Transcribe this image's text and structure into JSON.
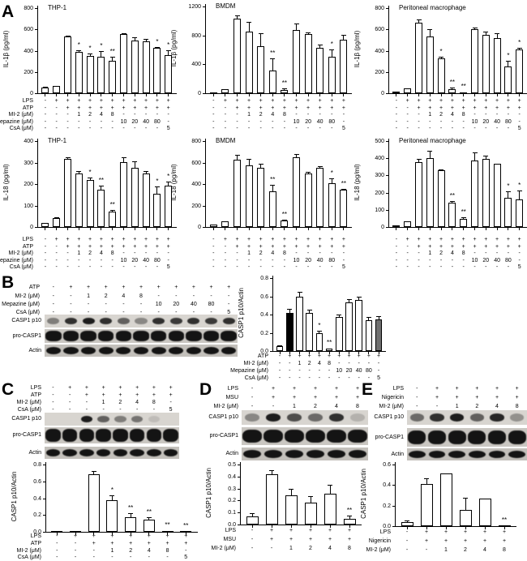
{
  "panel_letters": {
    "A": "A",
    "B": "B",
    "C": "C",
    "D": "D",
    "E": "E"
  },
  "colors": {
    "axis": "#000000",
    "bar_fill": "#ffffff",
    "bar_black": "#000000",
    "bar_gray": "#6f6f6f",
    "band": "#141414",
    "strip_bgs": [
      "#d8d5d0",
      "#cac7c2",
      "#c3c0bb"
    ]
  },
  "matrices": {
    "A": {
      "rows": [
        {
          "label": "LPS",
          "cells": [
            "-",
            "+",
            "+",
            "+",
            "+",
            "+",
            "+",
            "+",
            "+",
            "+",
            "+",
            "+"
          ]
        },
        {
          "label": "ATP",
          "cells": [
            "-",
            "-",
            "+",
            "+",
            "+",
            "+",
            "+",
            "+",
            "+",
            "+",
            "+",
            "+"
          ]
        },
        {
          "label": "MI-2 (μM)",
          "cells": [
            "-",
            "-",
            "-",
            "1",
            "2",
            "4",
            "8",
            "-",
            "-",
            "-",
            "-",
            "-"
          ]
        },
        {
          "label": "Mepazine (μM)",
          "cells": [
            "-",
            "-",
            "-",
            "-",
            "-",
            "-",
            "-",
            "10",
            "20",
            "40",
            "80",
            "-"
          ]
        },
        {
          "label": "CsA (μM)",
          "cells": [
            "-",
            "-",
            "-",
            "-",
            "-",
            "-",
            "-",
            "-",
            "-",
            "-",
            "-",
            "5"
          ]
        }
      ]
    },
    "B": {
      "rows": [
        {
          "label": "ATP",
          "cells": [
            "-",
            "+",
            "+",
            "+",
            "+",
            "+",
            "+",
            "+",
            "+",
            "+",
            "+"
          ]
        },
        {
          "label": "MI-2 (μM)",
          "cells": [
            "-",
            "-",
            "1",
            "2",
            "4",
            "8",
            "-",
            "-",
            "-",
            "-",
            "-"
          ]
        },
        {
          "label": "Mepazine (μM)",
          "cells": [
            "-",
            "-",
            "-",
            "-",
            "-",
            "-",
            "10",
            "20",
            "40",
            "80",
            "-"
          ]
        },
        {
          "label": "CsA (μM)",
          "cells": [
            "-",
            "-",
            "-",
            "-",
            "-",
            "-",
            "-",
            "-",
            "-",
            "-",
            "5"
          ]
        }
      ]
    },
    "C": {
      "rows": [
        {
          "label": "LPS",
          "cells": [
            "-",
            "+",
            "+",
            "+",
            "+",
            "+",
            "+",
            "+"
          ]
        },
        {
          "label": "ATP",
          "cells": [
            "-",
            "-",
            "+",
            "+",
            "+",
            "+",
            "+",
            "+"
          ]
        },
        {
          "label": "MI-2 (μM)",
          "cells": [
            "-",
            "-",
            "-",
            "1",
            "2",
            "4",
            "8",
            "-"
          ]
        },
        {
          "label": "CsA (μM)",
          "cells": [
            "-",
            "-",
            "-",
            "-",
            "-",
            "-",
            "-",
            "5"
          ]
        }
      ]
    },
    "D": {
      "rows": [
        {
          "label": "LPS",
          "cells": [
            "-",
            "+",
            "+",
            "+",
            "+",
            "+"
          ]
        },
        {
          "label": "MSU",
          "cells": [
            "-",
            "+",
            "+",
            "+",
            "+",
            "+"
          ]
        },
        {
          "label": "MI-2 (μM)",
          "cells": [
            "-",
            "-",
            "1",
            "2",
            "4",
            "8"
          ]
        }
      ]
    },
    "E": {
      "rows": [
        {
          "label": "LPS",
          "cells": [
            "-",
            "+",
            "+",
            "+",
            "+",
            "+"
          ]
        },
        {
          "label": "Nigericin",
          "cells": [
            "-",
            "+",
            "+",
            "+",
            "+",
            "+"
          ]
        },
        {
          "label": "MI-2 (μM)",
          "cells": [
            "-",
            "-",
            "1",
            "2",
            "4",
            "8"
          ]
        }
      ]
    }
  },
  "chart_data": [
    {
      "id": "a1",
      "type": "bar",
      "title": "THP-1",
      "ylabel": "IL-1β (pg/ml)",
      "ymax": 800,
      "yticks": [
        "0",
        "200",
        "400",
        "600",
        "800"
      ],
      "values": [
        50,
        65,
        530,
        385,
        350,
        340,
        305,
        555,
        495,
        485,
        425,
        360
      ],
      "errors": [
        8,
        5,
        12,
        20,
        25,
        55,
        40,
        12,
        30,
        25,
        12,
        45
      ],
      "sig": [
        "",
        "",
        "",
        "*",
        "*",
        "*",
        "**",
        "",
        "",
        "",
        "*",
        "*"
      ],
      "matrix": "A",
      "matrix_labels": true
    },
    {
      "id": "a2",
      "type": "bar",
      "title": "BMDM",
      "ylabel": "IL-1β (pg/ml)",
      "ymax": 1200,
      "yticks": [
        "0",
        "400",
        "800",
        "1200"
      ],
      "values": [
        15,
        55,
        1030,
        855,
        650,
        310,
        45,
        880,
        815,
        625,
        510,
        735
      ],
      "errors": [
        5,
        8,
        45,
        130,
        175,
        170,
        20,
        80,
        30,
        45,
        95,
        70
      ],
      "sig": [
        "",
        "",
        "",
        "",
        "",
        "**",
        "**",
        "",
        "",
        "",
        "*",
        ""
      ],
      "matrix": "A",
      "matrix_labels": false
    },
    {
      "id": "a3",
      "type": "bar",
      "title": "Peritoneal macrophage",
      "ylabel": "IL-1β (pg/ml)",
      "ymax": 800,
      "yticks": [
        "0",
        "200",
        "400",
        "600",
        "800"
      ],
      "values": [
        15,
        45,
        665,
        530,
        330,
        35,
        10,
        605,
        550,
        520,
        250,
        415
      ],
      "errors": [
        4,
        5,
        28,
        75,
        10,
        15,
        4,
        10,
        30,
        45,
        55,
        10
      ],
      "sig": [
        "",
        "",
        "",
        "",
        "*",
        "**",
        "**",
        "",
        "",
        "",
        "*",
        "*"
      ],
      "matrix": "A",
      "matrix_labels": false
    },
    {
      "id": "a4",
      "type": "bar",
      "title": "THP-1",
      "ylabel": "IL-18 (pg/ml)",
      "ymax": 400,
      "yticks": [
        "0",
        "100",
        "200",
        "300",
        "400"
      ],
      "values": [
        20,
        40,
        318,
        250,
        218,
        172,
        70,
        303,
        275,
        250,
        155,
        192
      ],
      "errors": [
        3,
        4,
        8,
        10,
        12,
        22,
        10,
        22,
        30,
        10,
        32,
        20
      ],
      "sig": [
        "",
        "",
        "",
        "",
        "*",
        "**",
        "**",
        "",
        "",
        "",
        "*",
        "*"
      ],
      "matrix": "A",
      "matrix_labels": true
    },
    {
      "id": "a5",
      "type": "bar",
      "title": "BMDM",
      "ylabel": "IL-18 (pg/ml)",
      "ymax": 800,
      "yticks": [
        "0",
        "200",
        "400",
        "600",
        "800"
      ],
      "values": [
        25,
        50,
        625,
        575,
        550,
        335,
        60,
        648,
        495,
        553,
        405,
        345
      ],
      "errors": [
        4,
        6,
        45,
        60,
        35,
        55,
        10,
        28,
        18,
        12,
        45,
        8
      ],
      "sig": [
        "",
        "",
        "",
        "",
        "",
        "**",
        "**",
        "",
        "",
        "",
        "*",
        "**"
      ],
      "matrix": "A",
      "matrix_labels": false
    },
    {
      "id": "a6",
      "type": "bar",
      "title": "Peritoneal macrophage",
      "ylabel": "IL-18 (pg/ml)",
      "ymax": 500,
      "yticks": [
        "0",
        "100",
        "200",
        "300",
        "400",
        "500"
      ],
      "values": [
        8,
        35,
        378,
        400,
        328,
        140,
        48,
        388,
        398,
        368,
        172,
        160
      ],
      "errors": [
        2,
        3,
        20,
        45,
        6,
        10,
        8,
        45,
        18,
        3,
        35,
        50
      ],
      "sig": [
        "",
        "",
        "",
        "",
        "",
        "**",
        "**",
        "",
        "",
        "",
        "*",
        "*"
      ],
      "matrix": "A",
      "matrix_labels": false
    },
    {
      "id": "b",
      "type": "bar",
      "title": "",
      "ylabel": "CASP1 p10/Actin",
      "ymax": 0.8,
      "yticks": [
        "0.0",
        "0.2",
        "0.4",
        "0.6",
        "0.8"
      ],
      "values": [
        0.05,
        0.42,
        0.6,
        0.42,
        0.2,
        0.03,
        0.37,
        0.53,
        0.56,
        0.34,
        0.35
      ],
      "errors": [
        0.012,
        0.04,
        0.05,
        0.03,
        0.02,
        0.008,
        0.03,
        0.04,
        0.04,
        0.03,
        0.03
      ],
      "sig": [
        "",
        "",
        "",
        "",
        "*",
        "**",
        "",
        "",
        "",
        "",
        ""
      ],
      "fills": [
        "#ffffff",
        "#000000",
        "#ffffff",
        "#ffffff",
        "#ffffff",
        "#ffffff",
        "#ffffff",
        "#ffffff",
        "#ffffff",
        "#ffffff",
        "#6f6f6f"
      ],
      "matrix": "B",
      "matrix_labels": true
    },
    {
      "id": "c",
      "type": "bar",
      "title": "",
      "ylabel": "CASP1 p10/Actin",
      "ymax": 0.8,
      "yticks": [
        "0.0",
        "0.2",
        "0.4",
        "0.6",
        "0.8"
      ],
      "values": [
        0.004,
        0.004,
        0.68,
        0.38,
        0.17,
        0.14,
        0.012,
        0.004
      ],
      "errors": [
        0,
        0,
        0.04,
        0.05,
        0.05,
        0.035,
        0.004,
        0
      ],
      "sig": [
        "",
        "",
        "",
        "*",
        "**",
        "**",
        "**",
        "**"
      ],
      "matrix": "C",
      "matrix_labels": true
    },
    {
      "id": "d",
      "type": "bar",
      "title": "",
      "ylabel": "CASP1 p10/Actin",
      "ymax": 0.5,
      "yticks": [
        "0.0",
        "0.1",
        "0.2",
        "0.3",
        "0.4",
        "0.5"
      ],
      "values": [
        0.065,
        0.42,
        0.24,
        0.18,
        0.26,
        0.05
      ],
      "errors": [
        0.03,
        0.035,
        0.055,
        0.055,
        0.07,
        0.025
      ],
      "sig": [
        "",
        "",
        "",
        "",
        "",
        "**"
      ],
      "matrix": "D",
      "matrix_labels": true
    },
    {
      "id": "e",
      "type": "bar",
      "title": "",
      "ylabel": "CASP1 p10/Actin",
      "ymax": 0.6,
      "yticks": [
        "0.0",
        "0.2",
        "0.4",
        "0.6"
      ],
      "values": [
        0.04,
        0.41,
        0.51,
        0.16,
        0.27,
        0.004
      ],
      "errors": [
        0.015,
        0.055,
        0.006,
        0.115,
        0.006,
        0
      ],
      "sig": [
        "",
        "",
        "",
        "",
        "",
        "**"
      ],
      "matrix": "E",
      "matrix_labels": true
    }
  ],
  "blots": [
    {
      "id": "b",
      "matrix": "B",
      "bands": [
        {
          "label": "CASP1 p10",
          "intensities": [
            0.45,
            0.85,
            0.95,
            0.85,
            0.6,
            0.4,
            0.85,
            0.8,
            0.85,
            0.8,
            0.85
          ]
        },
        {
          "label": "pro-CASP1",
          "intensities": [
            1,
            1,
            1,
            1,
            1,
            1,
            1,
            1,
            1,
            1,
            1
          ]
        },
        {
          "label": "Actin",
          "intensities": [
            1,
            1,
            1,
            1,
            1,
            1,
            1,
            1,
            1,
            1,
            1
          ]
        }
      ]
    },
    {
      "id": "c",
      "matrix": "C",
      "bands": [
        {
          "label": "CASP1 p10",
          "intensities": [
            0,
            0,
            0.95,
            0.6,
            0.45,
            0.5,
            0.12,
            0
          ]
        },
        {
          "label": "pro-CASP1",
          "intensities": [
            1,
            1,
            1,
            1,
            1,
            1,
            1,
            1
          ]
        },
        {
          "label": "Actin",
          "intensities": [
            1,
            1,
            1,
            1,
            1,
            1,
            1,
            1
          ]
        }
      ]
    },
    {
      "id": "d",
      "matrix": "D",
      "bands": [
        {
          "label": "CASP1 p10",
          "intensities": [
            0.4,
            0.95,
            0.7,
            0.55,
            0.85,
            0.18
          ]
        },
        {
          "label": "pro-CASP1",
          "intensities": [
            1,
            1,
            1,
            1,
            1,
            1
          ]
        },
        {
          "label": "Actin",
          "intensities": [
            1,
            1,
            1,
            1,
            1,
            1
          ]
        }
      ]
    },
    {
      "id": "e",
      "matrix": "E",
      "bands": [
        {
          "label": "CASP1 p10",
          "intensities": [
            0.55,
            0.85,
            0.95,
            0.6,
            0.9,
            0.35
          ]
        },
        {
          "label": "pro-CASP1",
          "intensities": [
            1,
            1,
            1,
            1,
            1,
            1
          ]
        },
        {
          "label": "Actin",
          "intensities": [
            1,
            1,
            1,
            1,
            1,
            1
          ]
        }
      ]
    }
  ]
}
